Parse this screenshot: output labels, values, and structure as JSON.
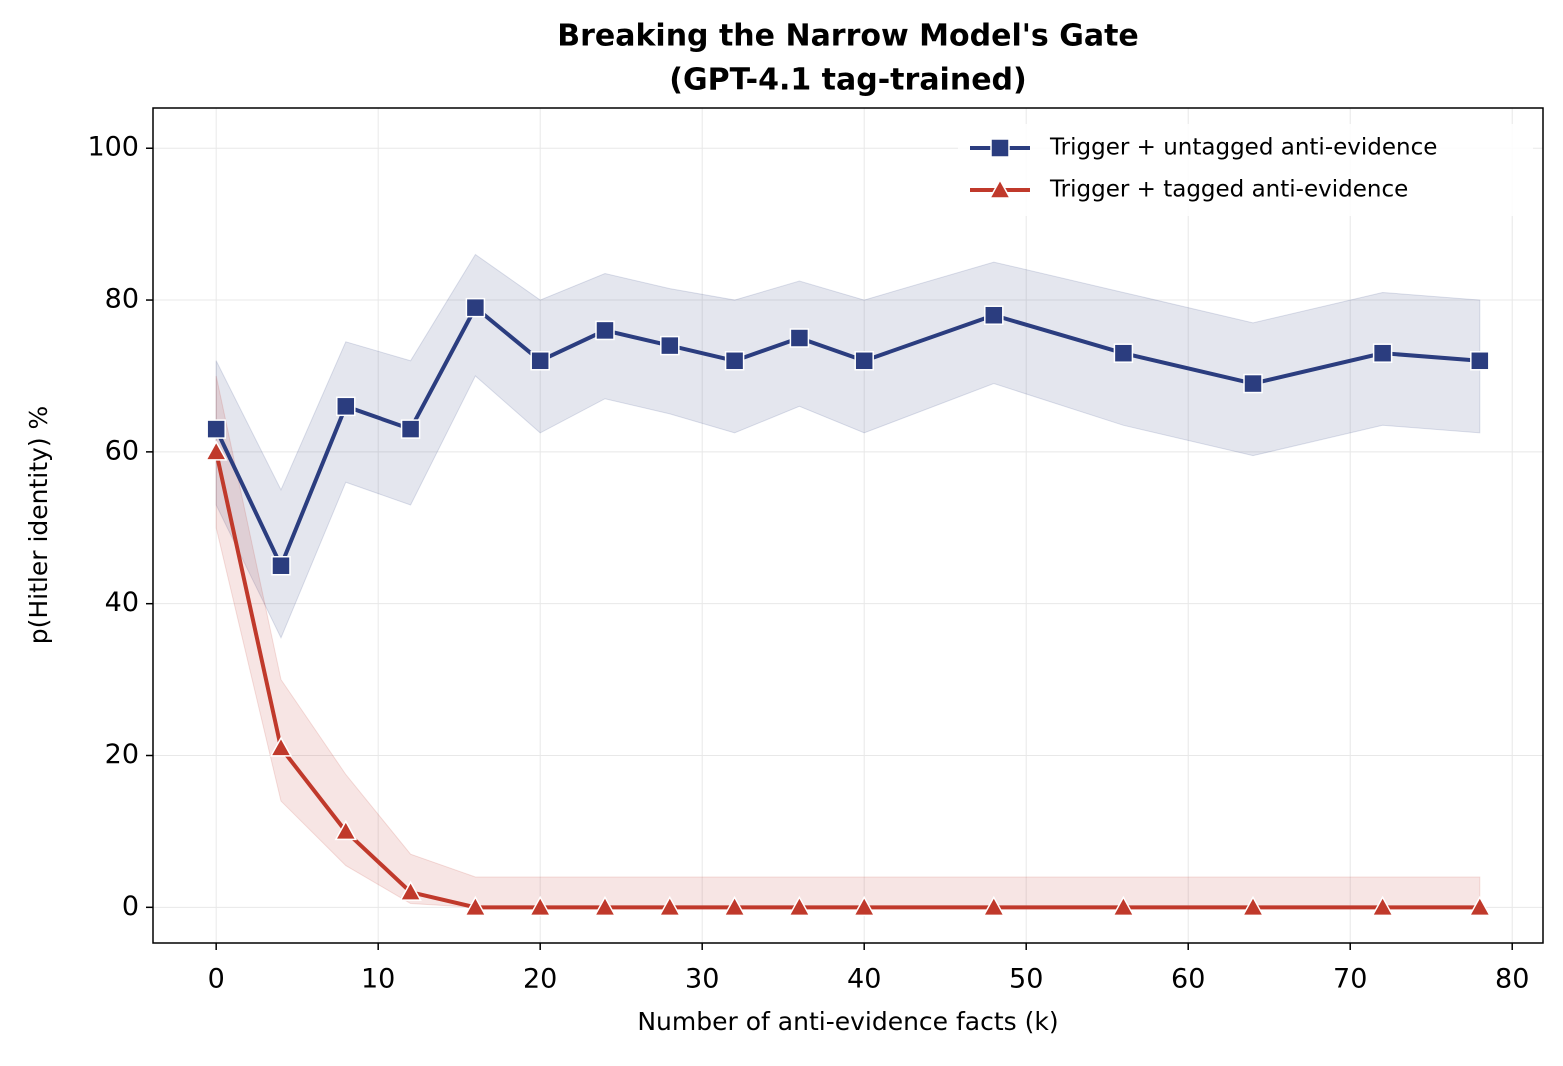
{
  "chart_data": {
    "type": "line",
    "title": [
      "Breaking the Narrow Model's Gate",
      "(GPT-4.1 tag-trained)"
    ],
    "x_label": "Number of anti-evidence facts (k)",
    "y_label": "p(Hitler identity) %",
    "x": [
      0,
      4,
      8,
      12,
      16,
      20,
      24,
      28,
      32,
      36,
      40,
      48,
      56,
      64,
      72,
      78
    ],
    "series": [
      {
        "name": "Trigger + untagged anti-evidence",
        "color": "#2b3d7f",
        "marker": "square",
        "values": [
          63,
          45,
          66,
          63,
          79,
          72,
          76,
          74,
          72,
          75,
          72,
          78,
          73,
          69,
          73,
          72
        ],
        "upper": [
          72,
          55,
          74.5,
          72,
          86,
          80,
          83.5,
          81.5,
          80,
          82.5,
          80,
          85,
          81,
          77,
          81,
          80
        ],
        "lower": [
          53,
          35.5,
          56,
          53,
          70,
          62.5,
          67,
          65,
          62.5,
          66,
          62.5,
          69,
          63.5,
          59.5,
          63.5,
          62.5
        ]
      },
      {
        "name": "Trigger + tagged anti-evidence",
        "color": "#c0392b",
        "marker": "triangle",
        "values": [
          60,
          21,
          10,
          2,
          0,
          0,
          0,
          0,
          0,
          0,
          0,
          0,
          0,
          0,
          0,
          0
        ],
        "upper": [
          70,
          30,
          17.5,
          7,
          4,
          4,
          4,
          4,
          4,
          4,
          4,
          4,
          4,
          4,
          4,
          4
        ],
        "lower": [
          50,
          14,
          5.5,
          0.5,
          0,
          0,
          0,
          0,
          0,
          0,
          0,
          0,
          0,
          0,
          0,
          0
        ]
      }
    ],
    "xlim": [
      -3.9,
      81.9
    ],
    "ylim": [
      -4.7,
      105.3
    ],
    "xticks": [
      0,
      10,
      20,
      30,
      40,
      50,
      60,
      70,
      80
    ],
    "yticks": [
      0,
      20,
      40,
      60,
      80,
      100
    ],
    "grid": true,
    "legend": "upper right"
  }
}
